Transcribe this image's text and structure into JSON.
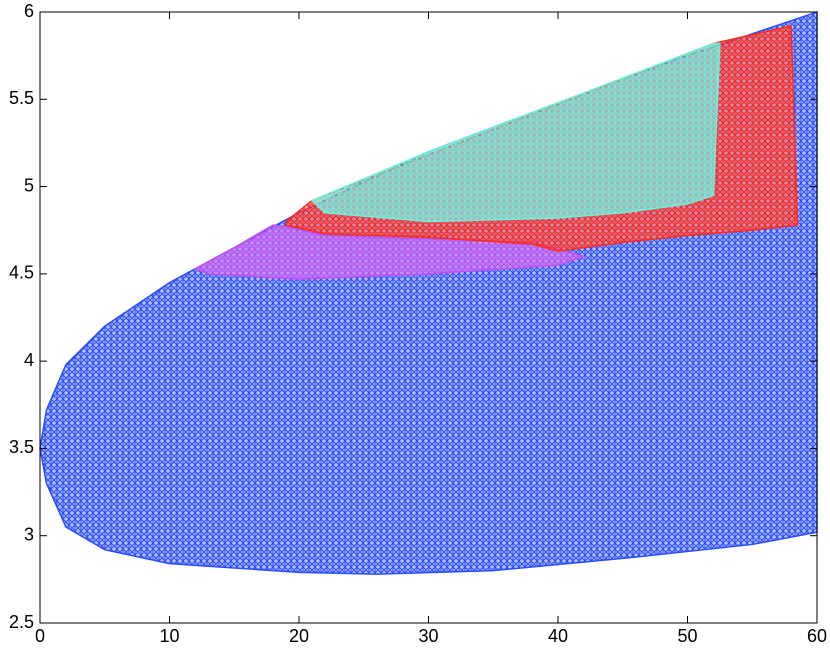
{
  "chart_data": {
    "type": "area",
    "xlim": [
      0,
      60
    ],
    "ylim": [
      2.5,
      6
    ],
    "xticks": [
      0,
      10,
      20,
      30,
      40,
      50,
      60
    ],
    "yticks": [
      2.5,
      3,
      3.5,
      4,
      4.5,
      5,
      5.5,
      6
    ],
    "series": [
      {
        "color": "#2a4cff",
        "x": [
          0,
          0.5,
          2,
          5,
          10,
          15,
          20,
          30,
          40,
          50,
          60,
          60,
          55,
          45,
          35,
          26,
          20,
          10,
          5,
          2,
          0.5,
          0
        ],
        "values": [
          3.5,
          3.72,
          3.98,
          4.2,
          4.45,
          4.65,
          4.85,
          5.2,
          5.48,
          5.75,
          6.0,
          3.02,
          2.95,
          2.87,
          2.8,
          2.78,
          2.79,
          2.84,
          2.92,
          3.05,
          3.3,
          3.5
        ]
      },
      {
        "color": "#c050f0",
        "x": [
          12,
          15,
          18,
          19,
          22,
          30,
          38,
          42,
          40,
          30,
          20,
          13
        ],
        "values": [
          4.53,
          4.65,
          4.78,
          4.77,
          4.72,
          4.7,
          4.68,
          4.6,
          4.55,
          4.5,
          4.47,
          4.5
        ]
      },
      {
        "color": "#ff2a1a",
        "x": [
          19,
          21,
          52,
          58,
          58.5,
          55,
          50,
          45,
          40,
          38,
          30,
          22,
          19
        ],
        "values": [
          4.8,
          4.92,
          5.82,
          5.92,
          4.78,
          4.75,
          4.72,
          4.68,
          4.63,
          4.67,
          4.71,
          4.73,
          4.78
        ]
      },
      {
        "color": "#70f0d8",
        "x": [
          21,
          30,
          40,
          52,
          52.5,
          52,
          50,
          45,
          40,
          30,
          22
        ],
        "values": [
          4.92,
          5.2,
          5.48,
          5.82,
          5.82,
          4.95,
          4.9,
          4.85,
          4.82,
          4.8,
          4.85
        ]
      }
    ]
  }
}
